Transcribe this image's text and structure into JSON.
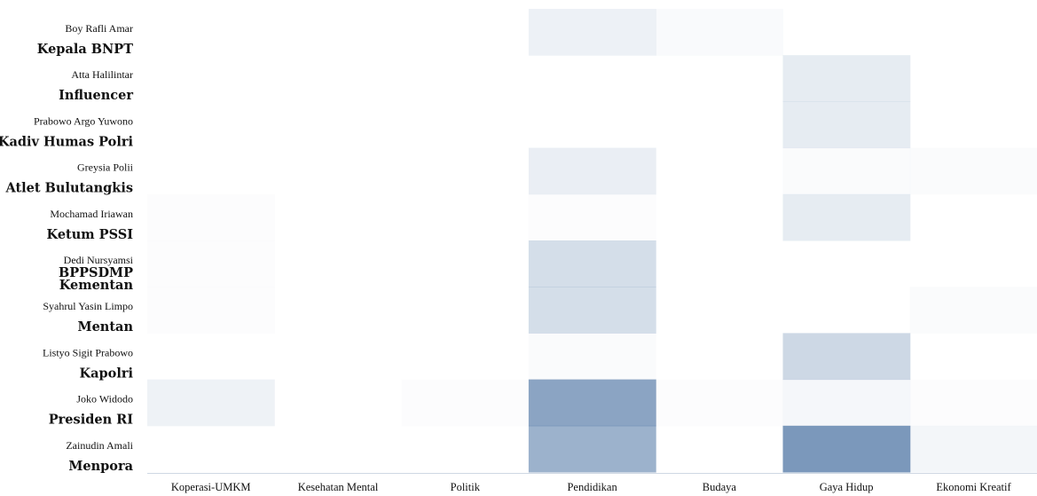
{
  "chart_data": {
    "type": "heatmap",
    "color": "#5a7eaa",
    "columns": [
      "Koperasi-UMKM",
      "Kesehatan Mental",
      "Politik",
      "Pendidikan",
      "Budaya",
      "Gaya Hidup",
      "Ekonomi Kreatif"
    ],
    "rows": [
      {
        "name": "Boy Rafli Amar",
        "title": "Kepala BNPT"
      },
      {
        "name": "Atta Halilintar",
        "title": "Influencer"
      },
      {
        "name": "Prabowo Argo Yuwono",
        "title": "Kadiv Humas Polri"
      },
      {
        "name": "Greysia Polii",
        "title": "Atlet Bulutangkis"
      },
      {
        "name": "Mochamad Iriawan",
        "title": "Ketum PSSI"
      },
      {
        "name": "Dedi Nursyamsi",
        "title": "BPPSDMP Kementan"
      },
      {
        "name": "Syahrul Yasin Limpo",
        "title": "Mentan"
      },
      {
        "name": "Listyo Sigit Prabowo",
        "title": "Kapolri"
      },
      {
        "name": "Joko Widodo",
        "title": "Presiden RI"
      },
      {
        "name": "Zainudin Amali",
        "title": "Menpora"
      }
    ],
    "values": [
      [
        0.0,
        0.0,
        0.0,
        0.11,
        0.04,
        0.0,
        0.0
      ],
      [
        0.0,
        0.0,
        0.0,
        0.0,
        0.0,
        0.15,
        0.0
      ],
      [
        0.0,
        0.0,
        0.0,
        0.0,
        0.0,
        0.15,
        0.0
      ],
      [
        0.0,
        0.0,
        0.0,
        0.13,
        0.0,
        0.03,
        0.03
      ],
      [
        0.02,
        0.0,
        0.0,
        0.02,
        0.0,
        0.15,
        0.0
      ],
      [
        0.02,
        0.0,
        0.0,
        0.26,
        0.0,
        0.0,
        0.0
      ],
      [
        0.02,
        0.0,
        0.0,
        0.26,
        0.0,
        0.0,
        0.03
      ],
      [
        0.0,
        0.0,
        0.0,
        0.03,
        0.0,
        0.3,
        0.0
      ],
      [
        0.1,
        0.0,
        0.02,
        0.7,
        0.02,
        0.06,
        0.02
      ],
      [
        0.0,
        0.0,
        0.0,
        0.6,
        0.0,
        0.8,
        0.07
      ]
    ]
  }
}
